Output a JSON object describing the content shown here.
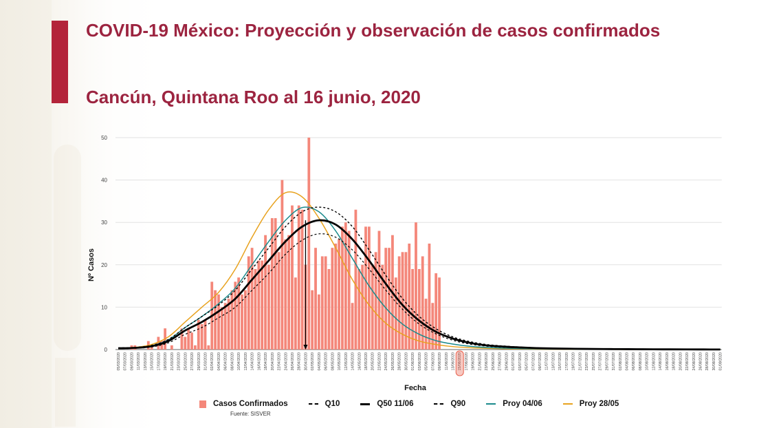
{
  "header": {
    "title": "COVID-19 México: Proyección y observación de casos confirmados",
    "subtitle": "Cancún, Quintana Roo al 16 junio, 2020"
  },
  "colors": {
    "title": "#9c2440",
    "accent_bar": "#b3243a",
    "bars": "#f4877a",
    "q50": "#000000",
    "q10": "#000000",
    "q90": "#000000",
    "proy_0406": "#1a8a8c",
    "proy_2805": "#e8a21e",
    "highlight": "#e8604c"
  },
  "legend": [
    {
      "key": "casos",
      "label": "Casos Confirmados",
      "style": "box"
    },
    {
      "key": "q10",
      "label": "Q10",
      "style": "dashed"
    },
    {
      "key": "q50",
      "label": "Q50 11/06",
      "style": "solid-thick"
    },
    {
      "key": "q90",
      "label": "Q90",
      "style": "dashed"
    },
    {
      "key": "proy_0406",
      "label": "Proy 04/06",
      "style": "solid"
    },
    {
      "key": "proy_2805",
      "label": "Proy 28/05",
      "style": "solid"
    }
  ],
  "source": "Fuente: SISVER",
  "chart_data": {
    "type": "bar",
    "title": "COVID-19 México: Proyección y observación de casos confirmados — Cancún, Quintana Roo al 16 junio, 2020",
    "xlabel": "Fecha",
    "ylabel": "Nº Casos",
    "ylim": [
      0,
      50
    ],
    "yticks": [
      0,
      10,
      20,
      30,
      40,
      50
    ],
    "grid": true,
    "legend_position": "bottom",
    "x_start": "05/03/2020",
    "x_end": "01/09/2020",
    "x_tick_step_days": 2,
    "highlighted_date": "15/06/2020",
    "peak_marker_date": "30/04/2020",
    "x_tick_labels": [
      "05/03/2020",
      "07/03/2020",
      "09/03/2020",
      "11/03/2020",
      "13/03/2020",
      "15/03/2020",
      "17/03/2020",
      "19/03/2020",
      "21/03/2020",
      "23/03/2020",
      "25/03/2020",
      "27/03/2020",
      "29/03/2020",
      "31/03/2020",
      "02/04/2020",
      "04/04/2020",
      "06/04/2020",
      "08/04/2020",
      "10/04/2020",
      "12/04/2020",
      "14/04/2020",
      "16/04/2020",
      "18/04/2020",
      "20/04/2020",
      "22/04/2020",
      "24/04/2020",
      "26/04/2020",
      "28/04/2020",
      "30/04/2020",
      "02/05/2020",
      "04/05/2020",
      "06/05/2020",
      "08/05/2020",
      "10/05/2020",
      "12/05/2020",
      "14/05/2020",
      "16/05/2020",
      "18/05/2020",
      "20/05/2020",
      "22/05/2020",
      "24/05/2020",
      "26/05/2020",
      "28/05/2020",
      "30/05/2020",
      "01/06/2020",
      "03/06/2020",
      "05/06/2020",
      "07/06/2020",
      "09/06/2020",
      "11/06/2020",
      "13/06/2020",
      "15/06/2020",
      "17/06/2020",
      "19/06/2020",
      "21/06/2020",
      "23/06/2020",
      "25/06/2020",
      "27/06/2020",
      "29/06/2020",
      "01/07/2020",
      "03/07/2020",
      "05/07/2020",
      "07/07/2020",
      "09/07/2020",
      "11/07/2020",
      "13/07/2020",
      "15/07/2020",
      "17/07/2020",
      "19/07/2020",
      "21/07/2020",
      "23/07/2020",
      "25/07/2020",
      "27/07/2020",
      "29/07/2020",
      "31/07/2020",
      "02/08/2020",
      "04/08/2020",
      "06/08/2020",
      "08/08/2020",
      "10/08/2020",
      "12/08/2020",
      "14/08/2020",
      "16/08/2020",
      "18/08/2020",
      "20/08/2020",
      "22/08/2020",
      "24/08/2020",
      "26/08/2020",
      "28/08/2020",
      "30/08/2020",
      "01/09/2020"
    ],
    "series": [
      {
        "name": "Casos Confirmados",
        "kind": "bar",
        "start_date": "05/03/2020",
        "values": [
          0,
          0,
          0,
          0,
          1,
          1,
          0,
          0,
          0,
          2,
          1,
          0,
          3,
          2,
          5,
          0,
          1,
          0,
          0,
          5,
          3,
          5,
          4,
          1,
          7,
          6,
          7,
          1,
          16,
          14,
          13,
          10,
          11,
          12,
          14,
          16,
          17,
          13,
          14,
          22,
          24,
          19,
          21,
          21,
          27,
          20,
          31,
          31,
          23,
          40,
          26,
          27,
          34,
          17,
          34,
          33,
          20,
          50,
          14,
          24,
          13,
          22,
          22,
          19,
          24,
          25,
          26,
          29,
          30,
          28,
          11,
          33,
          19,
          20,
          29,
          29,
          20,
          23,
          28,
          20,
          24,
          24,
          27,
          17,
          22,
          23,
          23,
          25,
          19,
          30,
          19,
          22,
          12,
          25,
          11,
          18,
          17
        ]
      },
      {
        "name": "Q50 11/06",
        "kind": "line",
        "peak": 30.5,
        "peak_date": "30/04/2020",
        "values_every_5_days": [
          0.3,
          0.4,
          0.8,
          2.0,
          4.5,
          6.5,
          9.0,
          12.0,
          16.5,
          21.0,
          25.5,
          29.0,
          30.5,
          29.5,
          26.0,
          21.0,
          15.5,
          10.5,
          6.8,
          4.2,
          2.6,
          1.6,
          1.0,
          0.7,
          0.5,
          0.35,
          0.25,
          0.2,
          0.15,
          0.12,
          0.1,
          0.08,
          0.06,
          0.05,
          0.04,
          0.03,
          0.02
        ]
      },
      {
        "name": "Q10",
        "kind": "line",
        "values_every_5_days": [
          0.2,
          0.3,
          0.6,
          1.6,
          3.6,
          5.2,
          7.5,
          10.0,
          14.0,
          18.0,
          22.5,
          25.8,
          27.3,
          26.5,
          23.5,
          19.0,
          14.0,
          9.5,
          6.0,
          3.7,
          2.2,
          1.3,
          0.8,
          0.55,
          0.4,
          0.28,
          0.2,
          0.15,
          0.12,
          0.1,
          0.08,
          0.06,
          0.05,
          0.04,
          0.03,
          0.02,
          0.02
        ]
      },
      {
        "name": "Q90",
        "kind": "line",
        "values_every_5_days": [
          0.4,
          0.5,
          1.0,
          2.4,
          5.2,
          7.8,
          10.5,
          14.0,
          19.0,
          24.0,
          29.0,
          32.5,
          33.6,
          32.5,
          29.0,
          23.5,
          17.5,
          12.0,
          7.8,
          4.9,
          3.0,
          1.9,
          1.2,
          0.85,
          0.6,
          0.42,
          0.3,
          0.22,
          0.17,
          0.14,
          0.11,
          0.09,
          0.07,
          0.06,
          0.05,
          0.04,
          0.03
        ]
      },
      {
        "name": "Proy 04/06",
        "kind": "line",
        "values_every_5_days": [
          0.3,
          0.4,
          0.9,
          2.3,
          5.2,
          7.8,
          10.8,
          14.5,
          20.0,
          25.5,
          30.5,
          33.5,
          32.5,
          28.0,
          21.5,
          15.0,
          9.8,
          6.0,
          3.6,
          2.1,
          1.3,
          0.8,
          0.5,
          0.35,
          0.25,
          0.18,
          0.13,
          0.1,
          0.08,
          0.06,
          0.05,
          0.04,
          0.03,
          0.02,
          0.02,
          0.01,
          0.01
        ]
      },
      {
        "name": "Proy 28/05",
        "kind": "line",
        "values_every_5_days": [
          0.3,
          0.5,
          1.2,
          3.0,
          6.5,
          10.0,
          13.5,
          19.0,
          26.5,
          33.0,
          37.0,
          36.0,
          31.0,
          24.0,
          16.5,
          10.5,
          6.2,
          3.6,
          2.0,
          1.2,
          0.7,
          0.45,
          0.3,
          0.2,
          0.15,
          0.1,
          0.08,
          0.06,
          0.05,
          0.04,
          0.03,
          0.02,
          0.02,
          0.01,
          0.01,
          0.01,
          0.01
        ]
      }
    ]
  }
}
